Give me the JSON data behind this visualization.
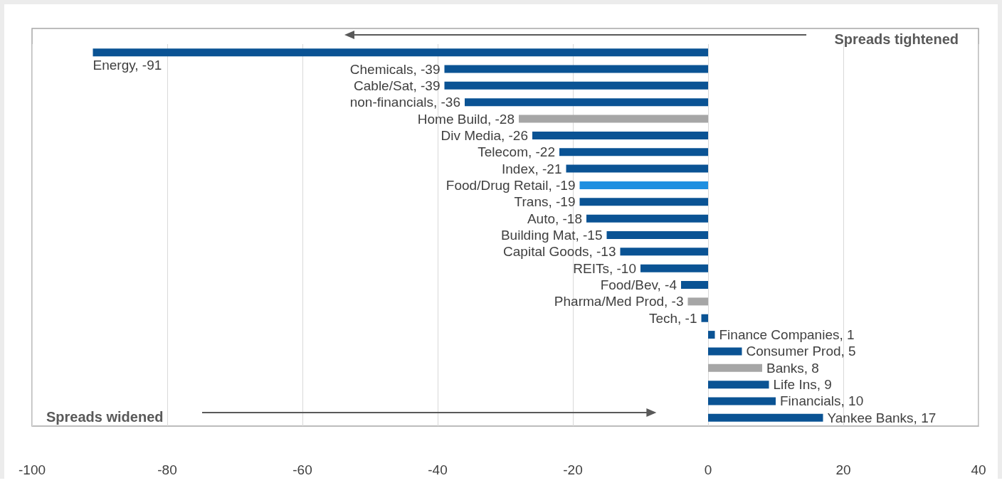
{
  "chart_data": {
    "type": "bar",
    "orientation": "horizontal",
    "categories": [
      "Energy, -91",
      "Chemicals, -39",
      "Cable/Sat, -39",
      "non-financials, -36",
      "Home Build, -28",
      "Div Media, -26",
      "Telecom, -22",
      "Index, -21",
      "Food/Drug Retail, -19",
      "Trans, -19",
      "Auto, -18",
      "Building Mat, -15",
      "Capital Goods, -13",
      "REITs, -10",
      "Food/Bev, -4",
      "Pharma/Med Prod, -3",
      "Tech, -1",
      "Finance Companies, 1",
      "Consumer Prod, 5",
      "Banks, 8",
      "Life Ins, 9",
      "Financials, 10",
      "Yankee Banks, 17"
    ],
    "values": [
      -91,
      -39,
      -39,
      -36,
      -28,
      -26,
      -22,
      -21,
      -19,
      -19,
      -18,
      -15,
      -13,
      -10,
      -4,
      -3,
      -1,
      1,
      5,
      8,
      9,
      10,
      17
    ],
    "colors": [
      "#0a5394",
      "#0a5394",
      "#0a5394",
      "#0a5394",
      "#a6a6a6",
      "#0a5394",
      "#0a5394",
      "#0a5394",
      "#1f8fe0",
      "#0a5394",
      "#0a5394",
      "#0a5394",
      "#0a5394",
      "#0a5394",
      "#0a5394",
      "#a6a6a6",
      "#0a5394",
      "#0a5394",
      "#0a5394",
      "#a6a6a6",
      "#0a5394",
      "#0a5394",
      "#0a5394"
    ],
    "xlim": [
      -100,
      40
    ],
    "xticks": [
      -100,
      -80,
      -60,
      -40,
      -20,
      0,
      20,
      40
    ],
    "grid": "x",
    "tick_labels": "x",
    "annotations": [
      "Spreads tightened",
      "Spreads widened"
    ]
  }
}
